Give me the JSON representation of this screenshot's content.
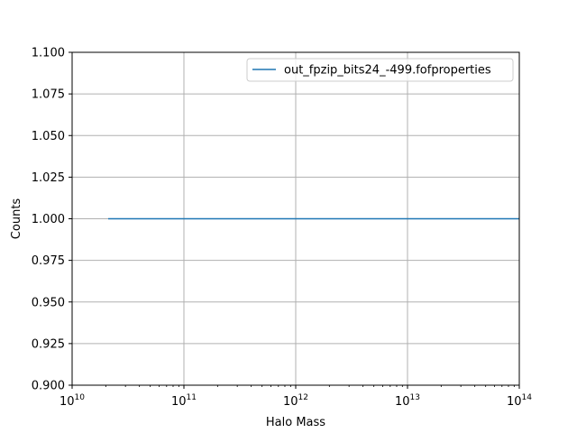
{
  "chart_data": {
    "type": "line",
    "xlabel": "Halo Mass",
    "ylabel": "Counts",
    "xscale": "log",
    "xlim": [
      10000000000.0,
      100000000000000.0
    ],
    "ylim": [
      0.9,
      1.1
    ],
    "grid": true,
    "legend_position": "top-right",
    "x_ticks": [
      {
        "value": 10000000000.0,
        "base": "10",
        "exp": "10"
      },
      {
        "value": 100000000000.0,
        "base": "10",
        "exp": "11"
      },
      {
        "value": 1000000000000.0,
        "base": "10",
        "exp": "12"
      },
      {
        "value": 10000000000000.0,
        "base": "10",
        "exp": "13"
      },
      {
        "value": 100000000000000.0,
        "base": "10",
        "exp": "14"
      }
    ],
    "y_ticks": [
      {
        "value": 0.9,
        "label": "0.900"
      },
      {
        "value": 0.925,
        "label": "0.925"
      },
      {
        "value": 0.95,
        "label": "0.950"
      },
      {
        "value": 0.975,
        "label": "0.975"
      },
      {
        "value": 1.0,
        "label": "1.000"
      },
      {
        "value": 1.025,
        "label": "1.025"
      },
      {
        "value": 1.05,
        "label": "1.050"
      },
      {
        "value": 1.075,
        "label": "1.075"
      },
      {
        "value": 1.1,
        "label": "1.100"
      }
    ],
    "series": [
      {
        "name": "out_fpzip_bits24_-499.fofproperties",
        "color": "#1f77b4",
        "x": [
          21000000000.0,
          100000000000000.0
        ],
        "y": [
          1.0,
          1.0
        ]
      }
    ]
  }
}
